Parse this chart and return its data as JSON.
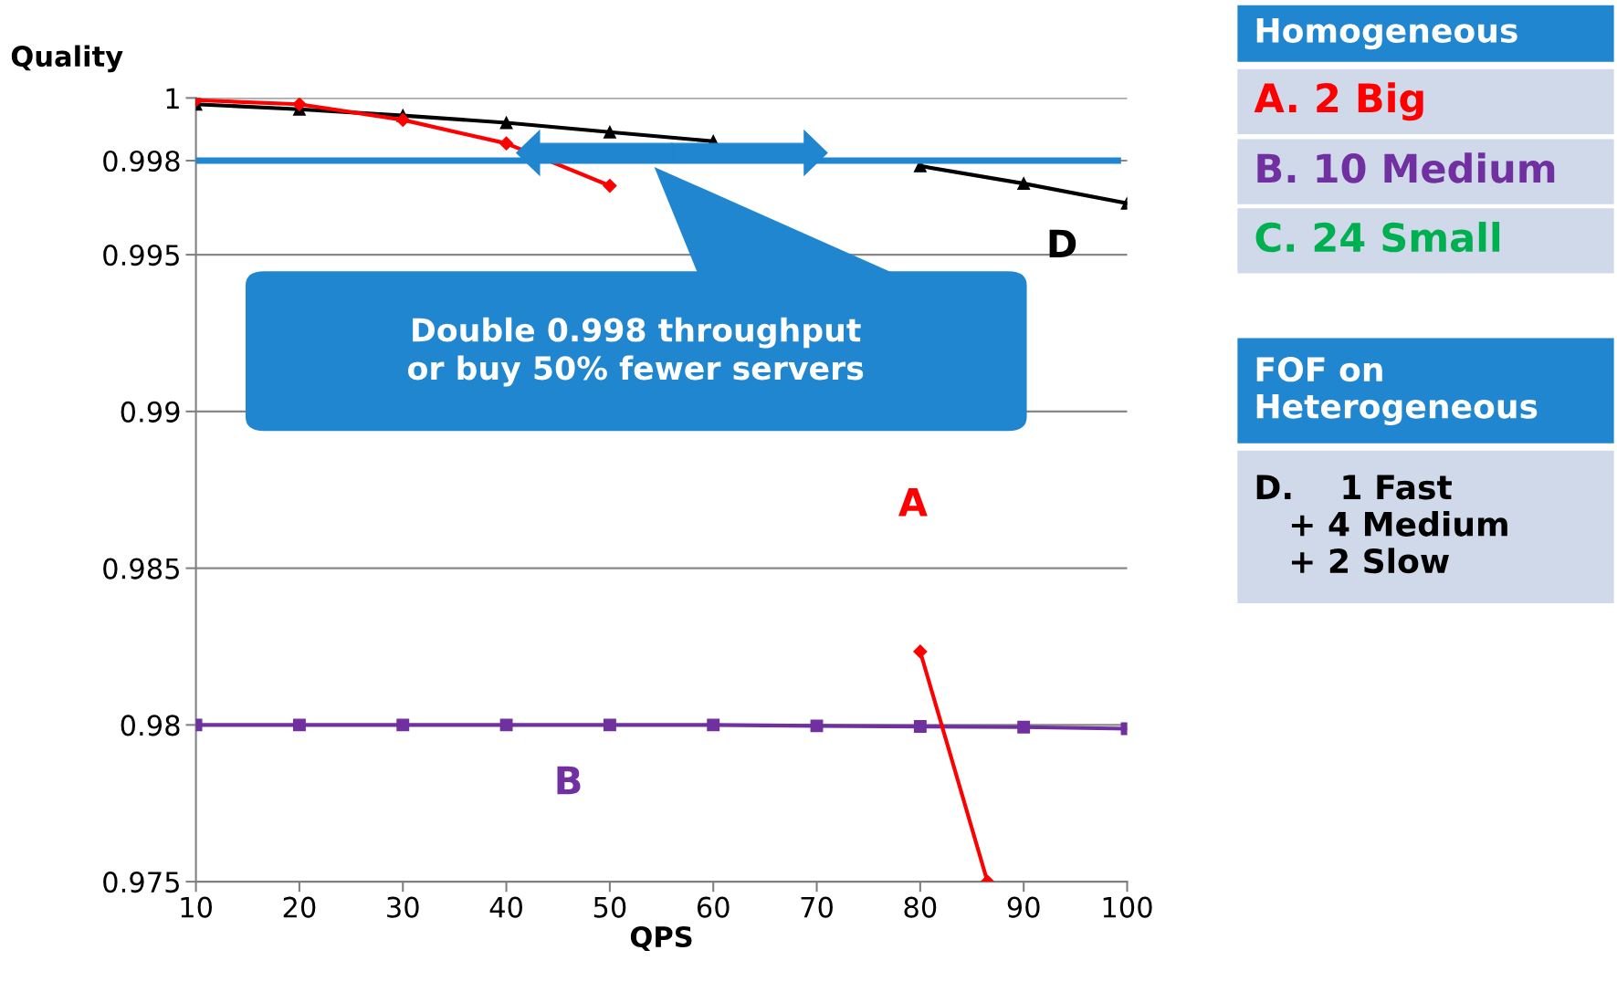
{
  "chart_data": {
    "type": "line",
    "xlabel": "QPS",
    "ylabel": "Quality",
    "x": [
      10,
      20,
      30,
      40,
      50,
      60,
      70,
      80,
      90,
      100
    ],
    "series": [
      {
        "name": "A",
        "color": "#ff0000",
        "marker": "diamond",
        "x": [
          10,
          20,
          30,
          40,
          50,
          60,
          70,
          80,
          86.5
        ],
        "values": [
          0.99993,
          0.9998,
          0.9993,
          0.99855,
          0.9972,
          null,
          null,
          0.98234,
          0.975
        ]
      },
      {
        "name": "B",
        "color": "#7030a0",
        "marker": "square",
        "values": [
          0.98,
          0.98,
          0.98,
          0.98,
          0.98,
          0.98,
          0.97997,
          0.97995,
          0.97993,
          0.97988
        ]
      },
      {
        "name": "D",
        "color": "#000000",
        "marker": "triangle",
        "values": [
          0.9998,
          0.99964,
          0.99944,
          0.99921,
          0.99891,
          0.99862,
          null,
          0.99783,
          0.99727,
          0.99664
        ]
      }
    ],
    "xlim": [
      10,
      100
    ],
    "ylim": [
      0.975,
      1
    ],
    "xticks": [
      10,
      20,
      30,
      40,
      50,
      60,
      70,
      80,
      90,
      100
    ],
    "yticks": [
      0.975,
      0.98,
      0.985,
      0.99,
      0.995,
      0.998,
      1
    ],
    "grid": "y",
    "ref_lines": [
      {
        "axis": "y",
        "value": 0.998,
        "color": "#1f86cf"
      }
    ],
    "annotations": [
      "Double 0.998 throughput\nor buy 50% fewer servers",
      "Homogeneous",
      "A. 2 Big",
      "B. 10 Medium",
      "C. 24 Small",
      "FOF on\nHeterogeneous",
      "D.    1 Fast\n   + 4 Medium\n   + 2 Slow"
    ]
  }
}
